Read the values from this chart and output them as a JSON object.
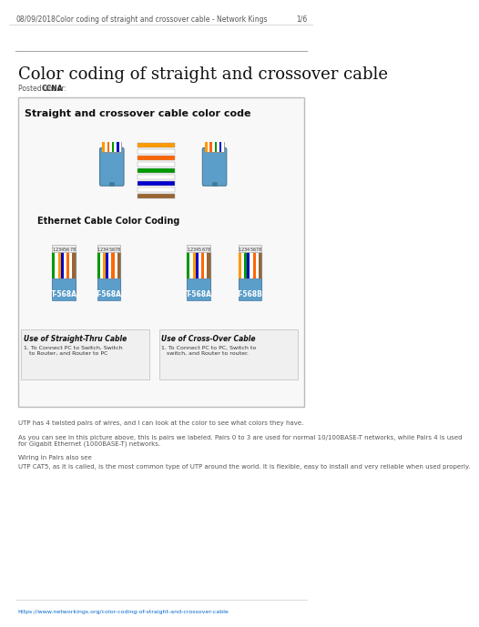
{
  "bg_color": "#ffffff",
  "header_date": "08/09/2018",
  "header_center": "Color coding of straight and crossover cable - Network Kings",
  "header_page": "1/6",
  "title": "Color coding of straight and crossover cable",
  "posted_under_label": "Posted under: ",
  "posted_under_value": "CCNA",
  "box_title": "Straight and crossover cable color code",
  "box_bg": "#f9f9f9",
  "box_border": "#cccccc",
  "ethernet_label": "Ethernet Cable Color Coding",
  "straight_cable_label": "Use of Straight-Thru Cable",
  "straight_cable_desc": "1. To Connect PC to Switch, Switch\n   to Router, and Router to PC",
  "crossover_cable_label": "Use of Cross-Over Cable",
  "crossover_cable_desc": "1. To Connect PC to PC, Switch to\n   switch, and Router to router.",
  "wire_colors_left": [
    "#ff9900",
    "#ffffff",
    "#ff6600",
    "#ffffff",
    "#009900",
    "#ffffff",
    "#0000cc",
    "#ffffff"
  ],
  "wire_colors_right": [
    "#009900",
    "#ffffff",
    "#ff9900",
    "#ffffff",
    "#ff6600",
    "#ffffff",
    "#0000cc",
    "#ffffff"
  ],
  "color_bar_colors": [
    "#ff9900",
    "#ffffff",
    "#ff6600",
    "#ffffff",
    "#009900",
    "#ffffff",
    "#0000cc",
    "#ffffff",
    "#996633"
  ],
  "body_text_1": "UTP has 4 twisted pairs of wires, and I can look at the color to see what colors they have.",
  "body_text_2": "As you can see in this picture above, this is pairs we labeled. Pairs 0 to 3 are used for normal 10/100BASE-T networks, while Pairs 4 is used\nfor Gigabit Ethernet (1000BASE-T) networks.",
  "body_text_3": "Wiring in Pairs also see",
  "body_text_4": "UTP CAT5, as it is called, is the most common type of UTP around the world. It is flexible, easy to install and very reliable when used properly.",
  "footer_url": "https://www.networkings.org/color-coding-of-straight-and-crossover-cable"
}
